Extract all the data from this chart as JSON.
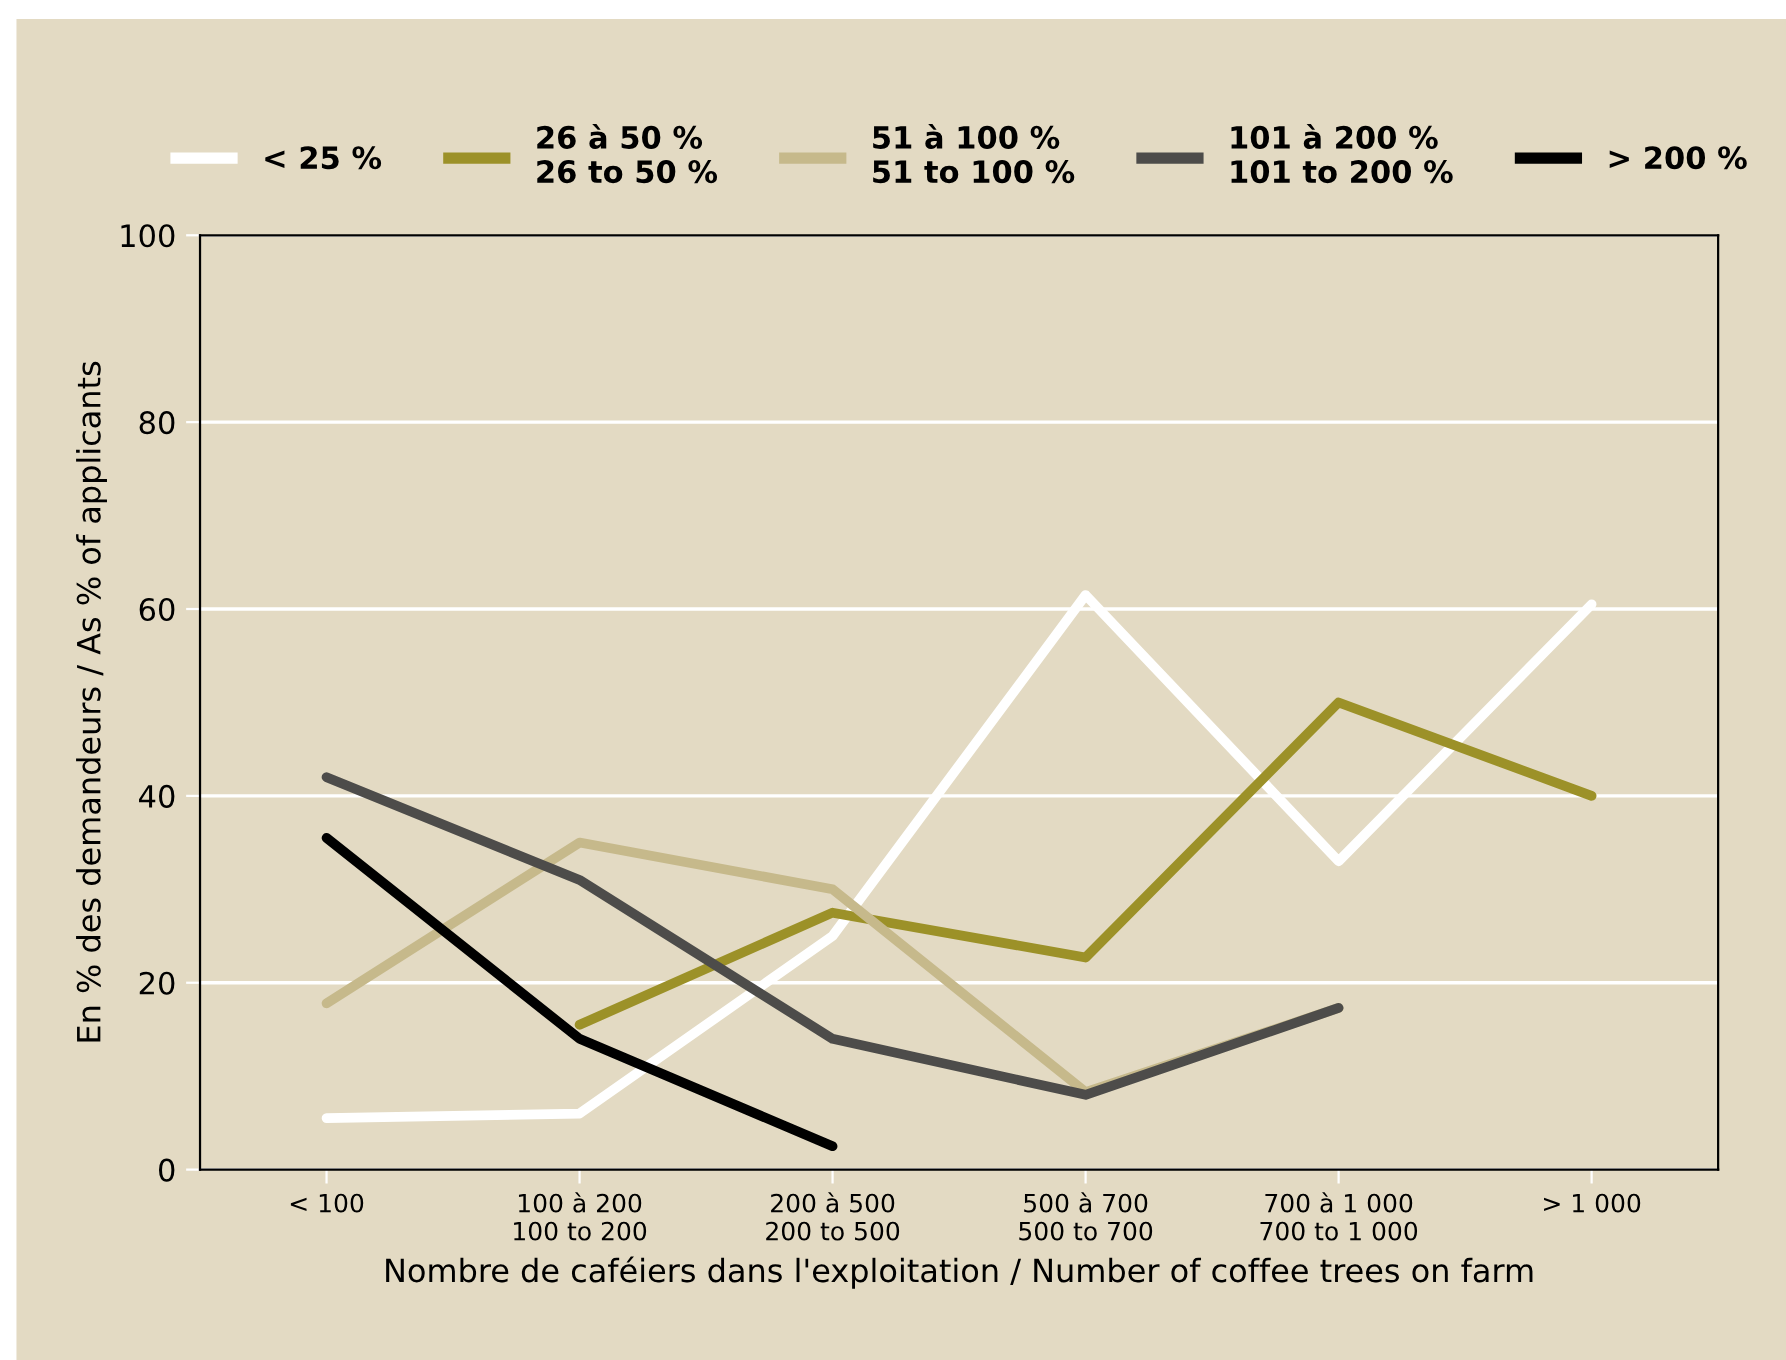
{
  "chart_data": {
    "type": "line",
    "xlabel": "Nombre de caféiers dans l'exploitation / Number of coffee trees on farm",
    "ylabel": "En % des demandeurs / As % of applicants",
    "categories": [
      "< 100",
      "100 à 200\n100 to 200",
      "200 à 500\n200 to 500",
      "500 à 700\n500 to 700",
      "700 à 1 000\n700 to 1 000",
      "> 1 000"
    ],
    "series": [
      {
        "name": "< 25 %",
        "color": "#ffffff",
        "values": [
          5.5,
          6,
          25,
          61.5,
          33,
          60.5
        ]
      },
      {
        "name": "26 à 50 %\n26 to 50 %",
        "color": "#9c9128",
        "values": [
          null,
          15.5,
          27.5,
          22.7,
          50,
          40
        ]
      },
      {
        "name": "51 à 100 %\n51 to 100 %",
        "color": "#c6b98b",
        "values": [
          17.8,
          35,
          30,
          8.3,
          17.3,
          null
        ]
      },
      {
        "name": "101 à 200 %\n101 to 200 %",
        "color": "#4d4c4a",
        "values": [
          42,
          31,
          14,
          8,
          17.3,
          null
        ]
      },
      {
        "name": "> 200 %",
        "color": "#000000",
        "values": [
          35.5,
          14,
          2.5,
          null,
          null,
          null
        ]
      }
    ],
    "ylim": [
      0,
      100
    ],
    "yticks": [
      0,
      20,
      40,
      60,
      80,
      100
    ],
    "grid": "y",
    "legend": "top",
    "marker": "none",
    "line_style": "solid"
  }
}
